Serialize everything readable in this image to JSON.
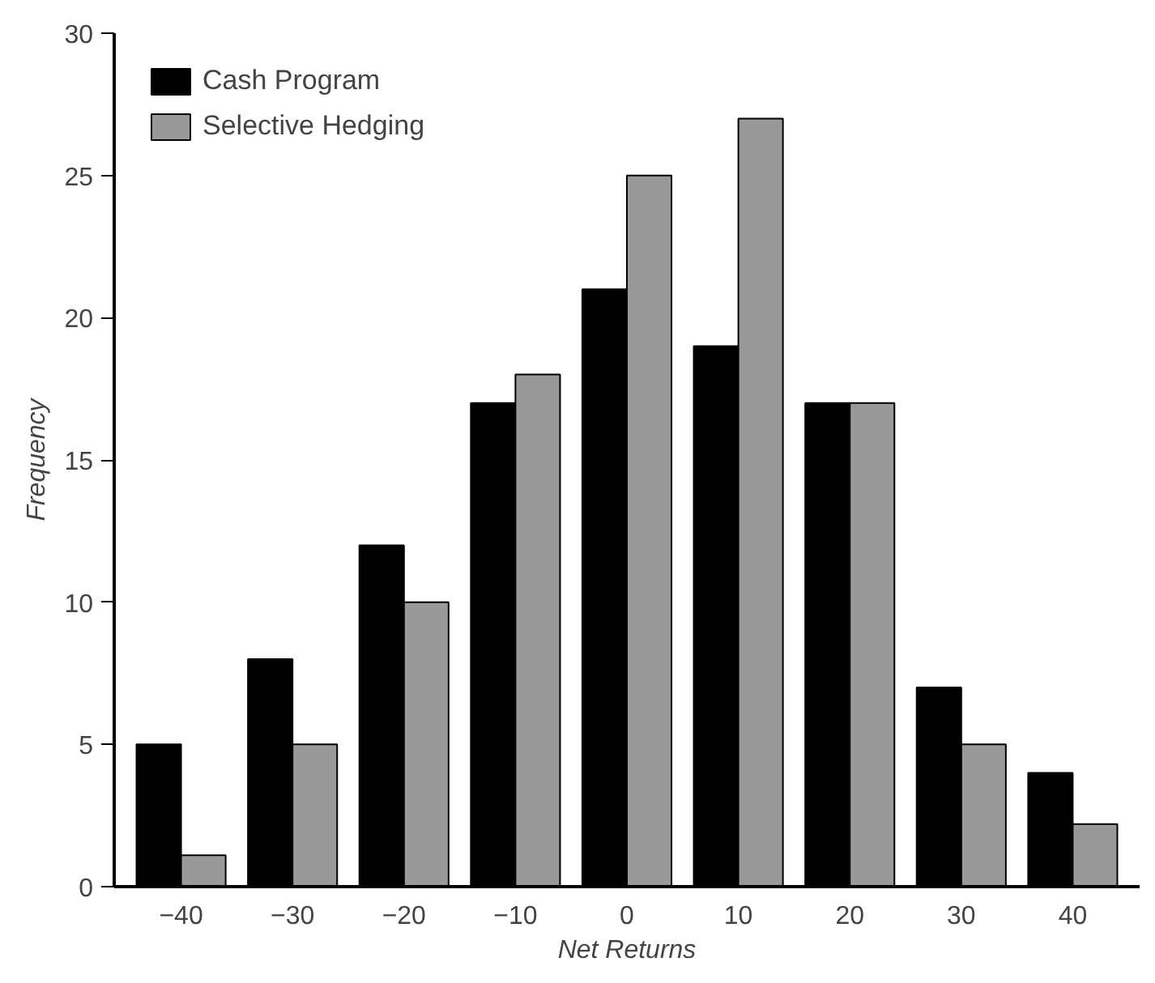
{
  "chart_data": {
    "type": "bar",
    "xlabel": "Net Returns",
    "ylabel": "Frequency",
    "categories": [
      "−40",
      "−30",
      "−20",
      "−10",
      "0",
      "10",
      "20",
      "30",
      "40"
    ],
    "series": [
      {
        "name": "Cash Program",
        "color": "#000000",
        "values": [
          5,
          8,
          12,
          17,
          21,
          19,
          17,
          7,
          4
        ]
      },
      {
        "name": "Selective Hedging",
        "color": "#999999",
        "values": [
          1.1,
          5,
          10,
          18,
          25,
          27,
          17,
          5,
          2.2
        ]
      }
    ],
    "ylim": [
      0,
      30
    ],
    "yticks": [
      0,
      5,
      10,
      15,
      20,
      25,
      30
    ],
    "grid": false,
    "legend": "top left"
  }
}
